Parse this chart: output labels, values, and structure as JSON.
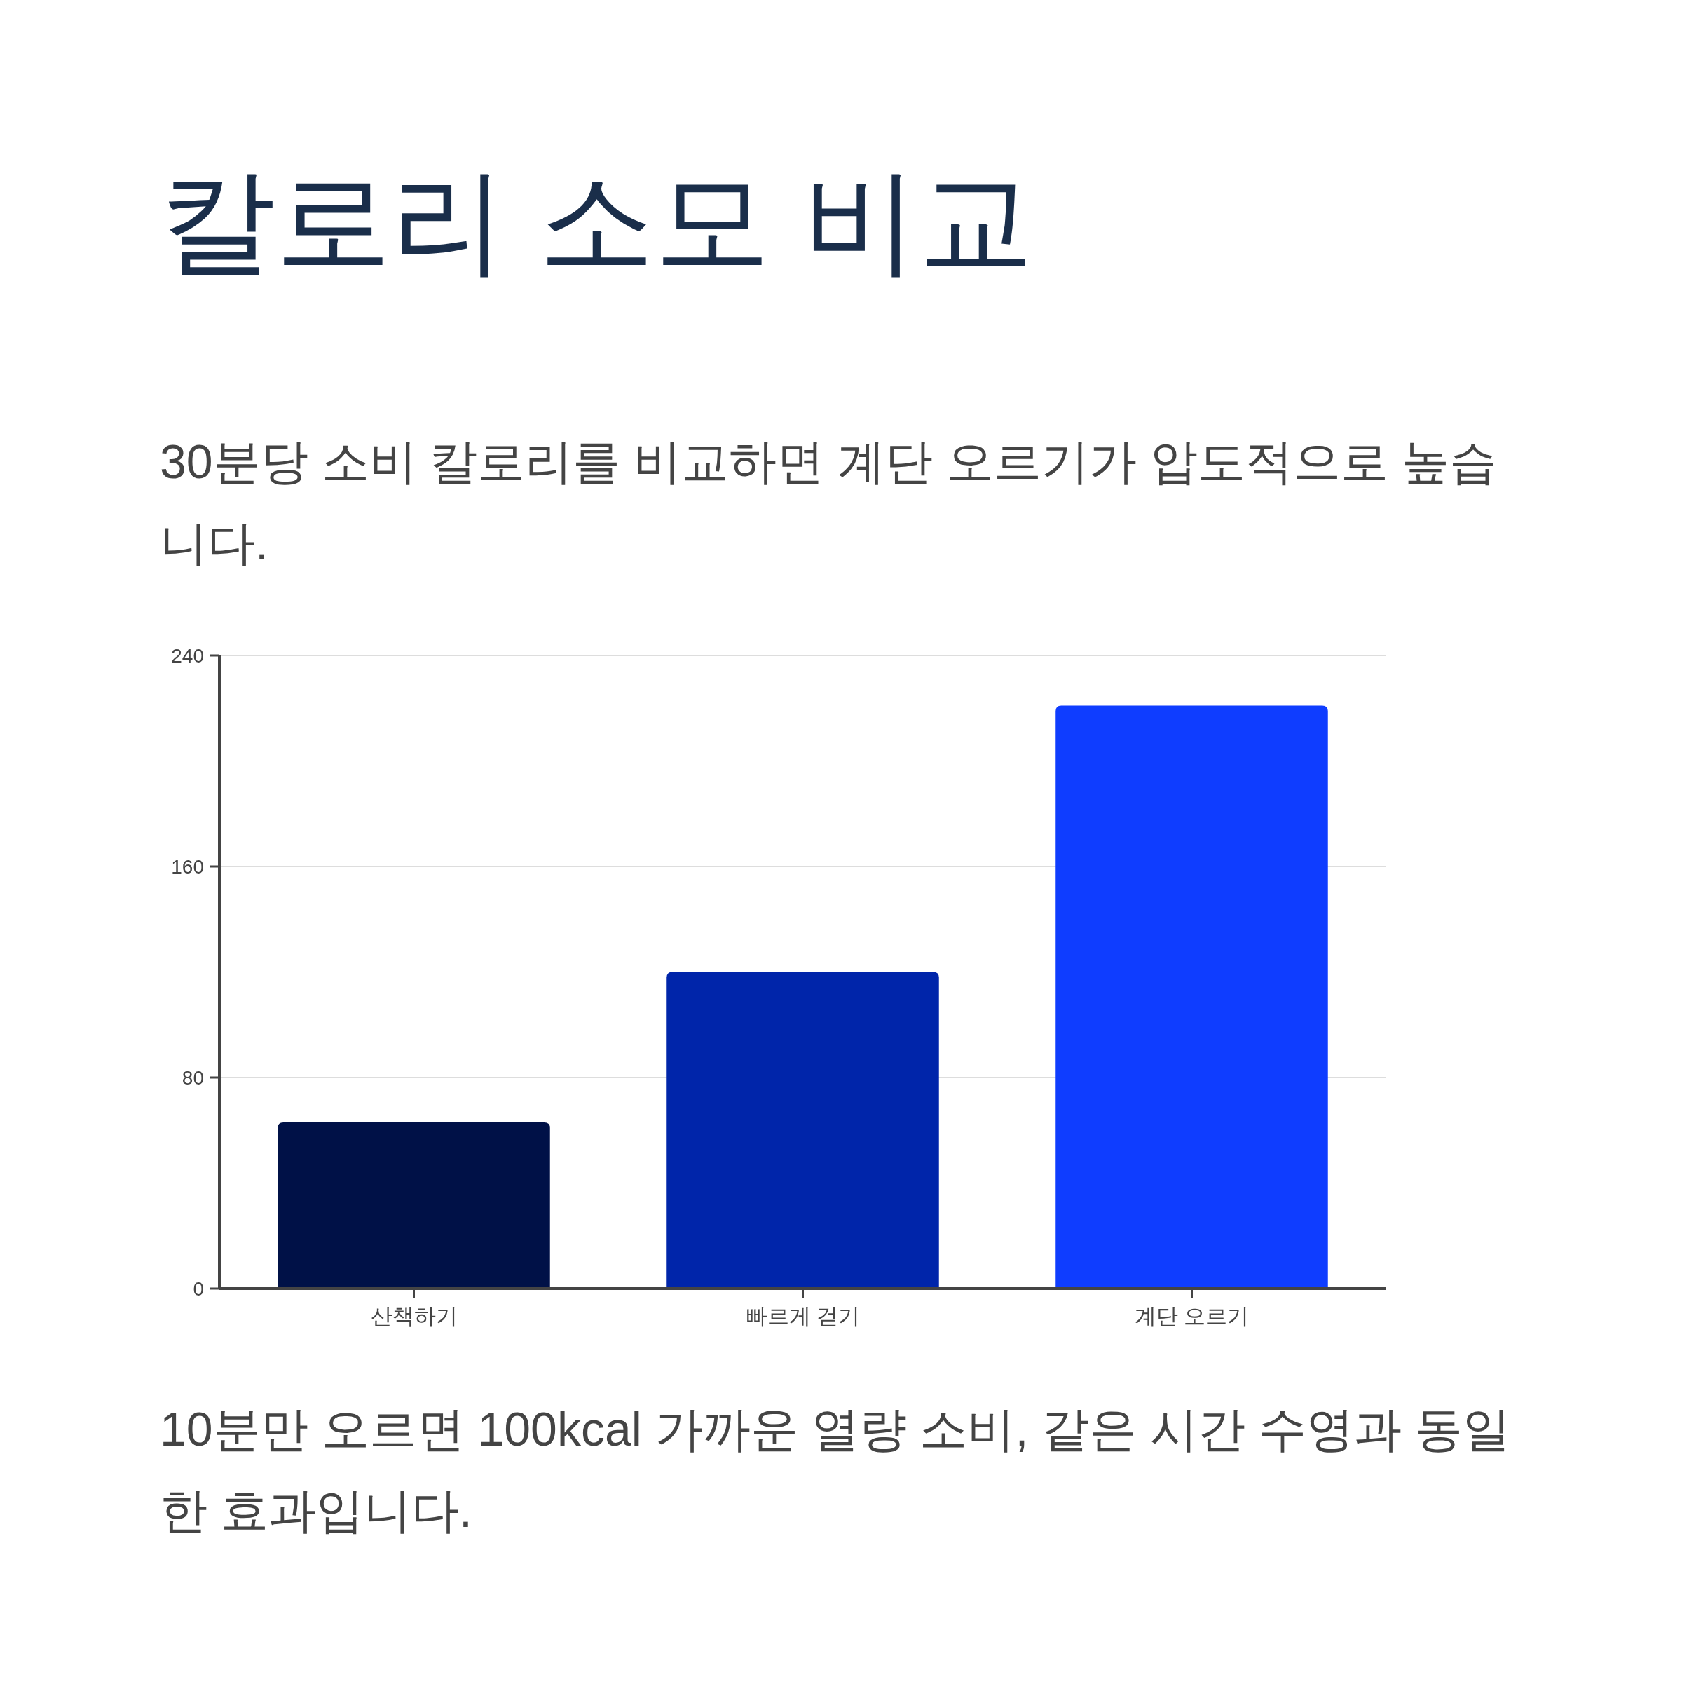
{
  "chart_data": {
    "type": "bar",
    "title": "칼로리 소모 비교",
    "subtitle": "30분당 소비 칼로리를 비교하면 계단 오르기가 압도적으로 높습니다.",
    "annotations": [
      "10분만 오르면 100kcal 가까운 열량 소비, 같은 시간 수영과 동일한 효과입니다."
    ],
    "categories": [
      "산책하기",
      "빠르게 걷기",
      "계단 오르기"
    ],
    "values": [
      63,
      120,
      221
    ],
    "colors": [
      "#001147",
      "#0025aa",
      "#0f3dff"
    ],
    "ylim": [
      0,
      240
    ],
    "yticks": [
      0,
      80,
      160,
      240
    ],
    "grid": "y"
  }
}
